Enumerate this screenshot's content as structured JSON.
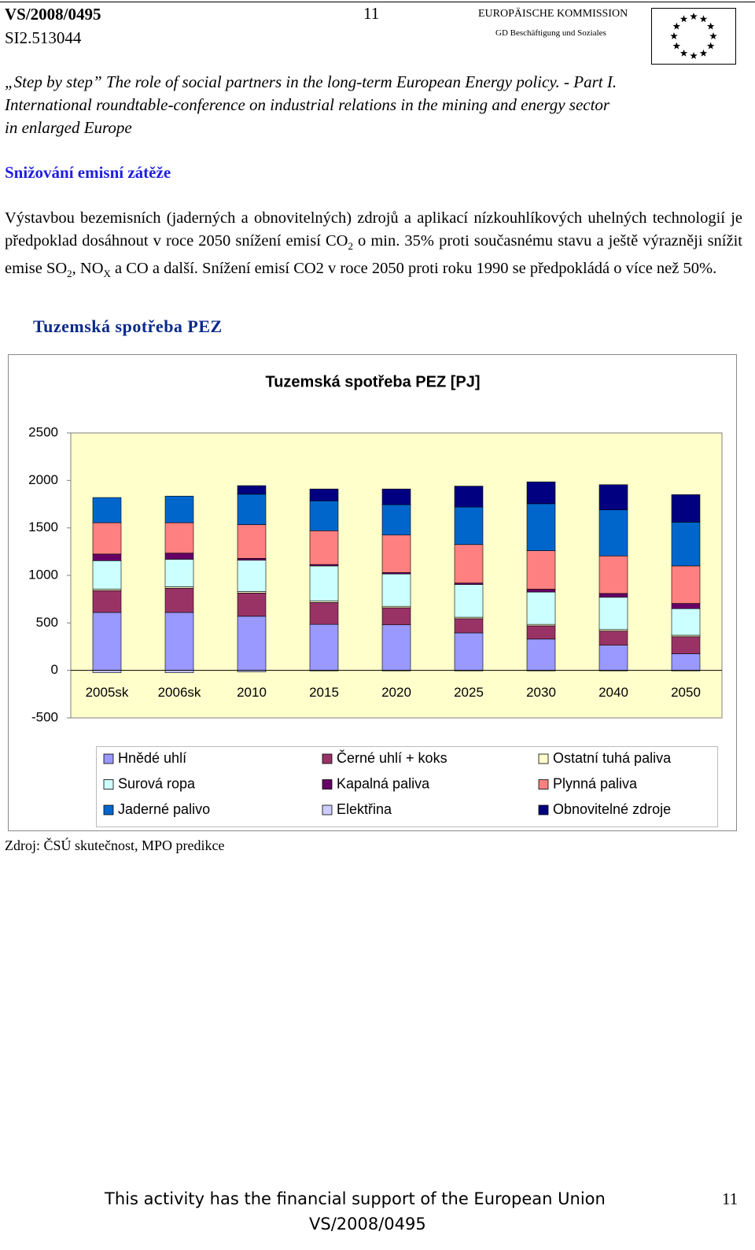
{
  "header": {
    "doc_id": "VS/2008/0495",
    "ref": "SI2.513044",
    "page_number": "11",
    "org": "EUROPÄISCHE KOMMISSION",
    "dept": "GD Beschäftigung und Soziales"
  },
  "intro": [
    "„Step by step” The role of social partners in the long-term European Energy policy. - Part I.",
    "International roundtable-conference on industrial relations in the mining and energy sector",
    "in enlarged Europe"
  ],
  "section_title": "Snižování emisní zátěže",
  "paragraph": [
    "Výstavbou bezemisních (jaderných a obnovitelných) zdrojů a aplikací nízkouhlíkových uhelných technologií je předpoklad dosáhnout v roce 2050 snížení emisí CO",
    "2",
    " o min. 35% proti současnému stavu a ještě výrazněji snížit emise SO",
    "2",
    ", NO",
    "X",
    " a CO a další. Snížení emisí CO2 v roce 2050 proti roku 1990 se předpokládá o více než 50%."
  ],
  "chart_heading": "Tuzemská spotřeba PEZ",
  "chart_data": {
    "type": "stacked_bar",
    "title": "Tuzemská spotřeba PEZ [PJ]",
    "categories": [
      "2005sk",
      "2006sk",
      "2010",
      "2015",
      "2020",
      "2025",
      "2030",
      "2040",
      "2050"
    ],
    "series": [
      {
        "name": "Hnědé uhlí",
        "color": "#9999ff",
        "values": [
          610,
          610,
          570,
          485,
          480,
          395,
          330,
          265,
          175
        ]
      },
      {
        "name": "Černé uhlí + koks",
        "color": "#993366",
        "values": [
          230,
          255,
          245,
          230,
          180,
          150,
          140,
          150,
          180
        ]
      },
      {
        "name": "Ostatní tuhá paliva",
        "color": "#ffffcc",
        "values": [
          15,
          15,
          15,
          15,
          15,
          15,
          15,
          15,
          15
        ]
      },
      {
        "name": "Surová ropa",
        "color": "#ccffff",
        "values": [
          300,
          290,
          330,
          370,
          340,
          345,
          340,
          340,
          280
        ]
      },
      {
        "name": "Kapalná paliva",
        "color": "#660066",
        "values": [
          70,
          65,
          20,
          15,
          15,
          15,
          30,
          40,
          55
        ]
      },
      {
        "name": "Plynná paliva",
        "color": "#ff8080",
        "values": [
          330,
          320,
          355,
          355,
          395,
          405,
          405,
          395,
          395
        ]
      },
      {
        "name": "Jaderné palivo",
        "color": "#0066cc",
        "values": [
          265,
          280,
          320,
          315,
          320,
          395,
          495,
          485,
          460
        ]
      },
      {
        "name": "Elektřina",
        "color": "#ccccff",
        "values": [
          -25,
          -25,
          -15,
          -5,
          -5,
          -5,
          -5,
          -5,
          -5
        ]
      },
      {
        "name": "Obnovitelné zdroje",
        "color": "#000080",
        "values": [
          0,
          0,
          90,
          125,
          165,
          220,
          230,
          265,
          290
        ]
      }
    ],
    "ylim": [
      -500,
      2500
    ],
    "yticks": [
      -500,
      0,
      500,
      1000,
      1500,
      2000,
      2500
    ],
    "grid": false,
    "plot_background": "#ffffcc"
  },
  "source": "Zdroj: ČSÚ skutečnost, MPO predikce",
  "footer": {
    "support": "This activity has the financial support of the European Union",
    "doc_id": "VS/2008/0495",
    "page_number": "11"
  }
}
